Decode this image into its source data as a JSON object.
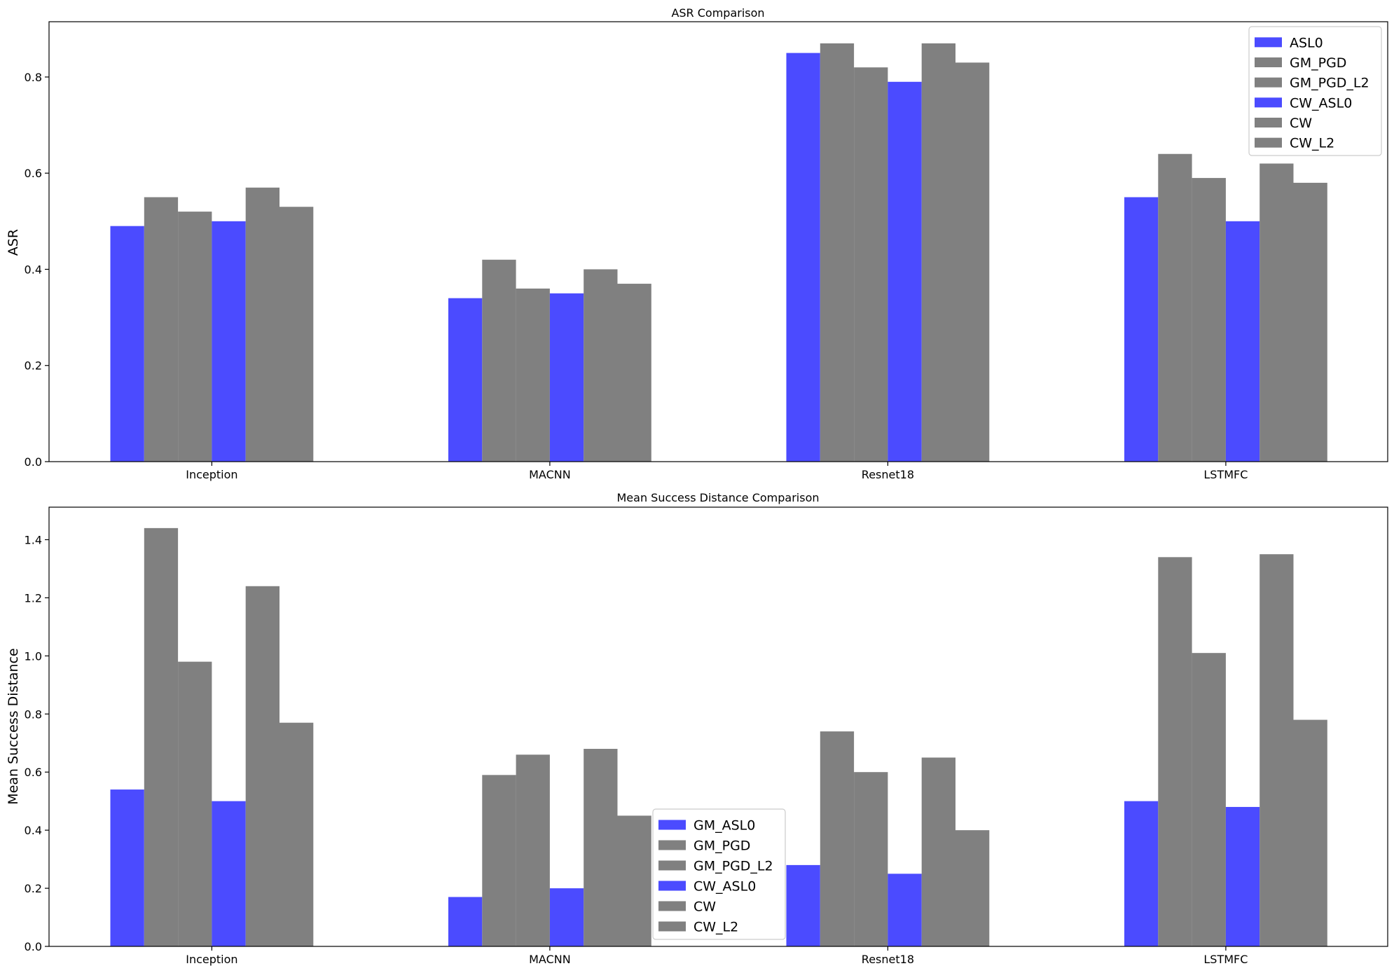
{
  "chart_data": [
    {
      "type": "bar",
      "title": "ASR Comparison",
      "xlabel": "",
      "ylabel": "ASR",
      "categories": [
        "Inception",
        "MACNN",
        "Resnet18",
        "LSTMFC"
      ],
      "ylim": [
        0,
        0.915
      ],
      "yticks": [
        0.0,
        0.2,
        0.4,
        0.6,
        0.8
      ],
      "ytick_labels": [
        "0.0",
        "0.2",
        "0.4",
        "0.6",
        "0.8"
      ],
      "grid": false,
      "legend_position": "top-right",
      "series": [
        {
          "name": "ASL0",
          "color": "#4b4bff",
          "values": [
            0.49,
            0.34,
            0.85,
            0.55
          ]
        },
        {
          "name": "GM_PGD",
          "color": "#808080",
          "values": [
            0.55,
            0.42,
            0.87,
            0.64
          ]
        },
        {
          "name": "GM_PGD_L2",
          "color": "#808080",
          "values": [
            0.52,
            0.36,
            0.82,
            0.59
          ]
        },
        {
          "name": "CW_ASL0",
          "color": "#4b4bff",
          "values": [
            0.5,
            0.35,
            0.79,
            0.5
          ]
        },
        {
          "name": "CW",
          "color": "#808080",
          "values": [
            0.57,
            0.4,
            0.87,
            0.62
          ]
        },
        {
          "name": "CW_L2",
          "color": "#808080",
          "values": [
            0.53,
            0.37,
            0.83,
            0.58
          ]
        }
      ]
    },
    {
      "type": "bar",
      "title": "Mean Success Distance Comparison",
      "xlabel": "",
      "ylabel": "Mean Success Distance",
      "categories": [
        "Inception",
        "MACNN",
        "Resnet18",
        "LSTMFC"
      ],
      "ylim": [
        0,
        1.512
      ],
      "yticks": [
        0.0,
        0.2,
        0.4,
        0.6,
        0.8,
        1.0,
        1.2,
        1.4
      ],
      "ytick_labels": [
        "0.0",
        "0.2",
        "0.4",
        "0.6",
        "0.8",
        "1.0",
        "1.2",
        "1.4"
      ],
      "grid": false,
      "legend_position": "bottom-center",
      "series": [
        {
          "name": "GM_ASL0",
          "color": "#4b4bff",
          "values": [
            0.54,
            0.17,
            0.28,
            0.5
          ]
        },
        {
          "name": "GM_PGD",
          "color": "#808080",
          "values": [
            1.44,
            0.59,
            0.74,
            1.34
          ]
        },
        {
          "name": "GM_PGD_L2",
          "color": "#808080",
          "values": [
            0.98,
            0.66,
            0.6,
            1.01
          ]
        },
        {
          "name": "CW_ASL0",
          "color": "#4b4bff",
          "values": [
            0.5,
            0.2,
            0.25,
            0.48
          ]
        },
        {
          "name": "CW",
          "color": "#808080",
          "values": [
            1.24,
            0.68,
            0.65,
            1.35
          ]
        },
        {
          "name": "CW_L2",
          "color": "#808080",
          "values": [
            0.77,
            0.45,
            0.4,
            0.78
          ]
        }
      ]
    }
  ]
}
